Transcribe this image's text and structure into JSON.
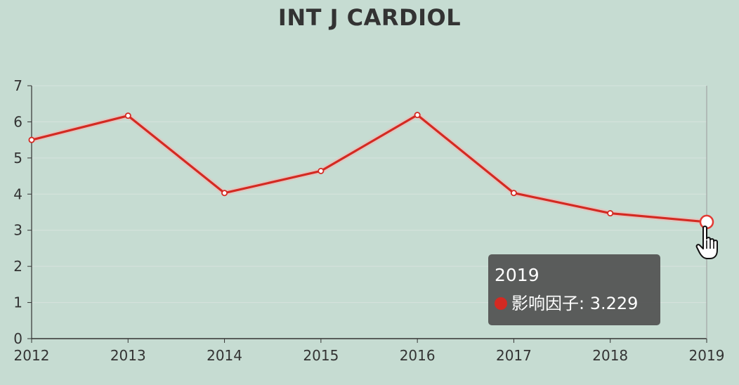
{
  "chart_data": {
    "type": "line",
    "title": "INT J CARDIOL",
    "categories": [
      "2012",
      "2013",
      "2014",
      "2015",
      "2016",
      "2017",
      "2018",
      "2019"
    ],
    "series": [
      {
        "name": "影响因子",
        "values": [
          5.5,
          6.17,
          4.03,
          4.64,
          6.19,
          4.03,
          3.47,
          3.229
        ]
      }
    ],
    "ylim": [
      0,
      7
    ],
    "yticks": [
      "0",
      "1",
      "2",
      "3",
      "4",
      "5",
      "6",
      "7"
    ],
    "grid": true,
    "colors": {
      "line": "#d42a22",
      "background": "#c6dcd2",
      "grid": "#d7e3dd",
      "axis": "#333333"
    },
    "tooltip": {
      "title": "2019",
      "label": "影响因子: 3.229",
      "highlighted_index": 7
    }
  }
}
